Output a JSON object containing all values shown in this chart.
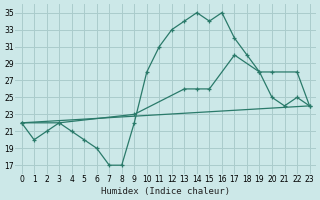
{
  "xlabel": "Humidex (Indice chaleur)",
  "bg_color": "#cce8e8",
  "grid_color": "#aacccc",
  "line_color": "#2a7a6a",
  "xlim": [
    -0.5,
    23.5
  ],
  "ylim": [
    16,
    36
  ],
  "yticks": [
    17,
    19,
    21,
    23,
    25,
    27,
    29,
    31,
    33,
    35
  ],
  "xticks": [
    0,
    1,
    2,
    3,
    4,
    5,
    6,
    7,
    8,
    9,
    10,
    11,
    12,
    13,
    14,
    15,
    16,
    17,
    18,
    19,
    20,
    21,
    22,
    23
  ],
  "line1_x": [
    0,
    1,
    2,
    3,
    4,
    5,
    6,
    7,
    8,
    9,
    10,
    11,
    12,
    13,
    14,
    15,
    16,
    17,
    18,
    19,
    20,
    21,
    22,
    23
  ],
  "line1_y": [
    22,
    20,
    21,
    22,
    21,
    20,
    19,
    17,
    17,
    22,
    28,
    31,
    33,
    34,
    35,
    34,
    35,
    32,
    30,
    28,
    25,
    24,
    25,
    24
  ],
  "line2_x": [
    0,
    3,
    9,
    13,
    14,
    15,
    17,
    19,
    20,
    22,
    23
  ],
  "line2_y": [
    22,
    22,
    23,
    26,
    26,
    26,
    30,
    28,
    28,
    28,
    24
  ],
  "line3_x": [
    0,
    23
  ],
  "line3_y": [
    22,
    24
  ]
}
